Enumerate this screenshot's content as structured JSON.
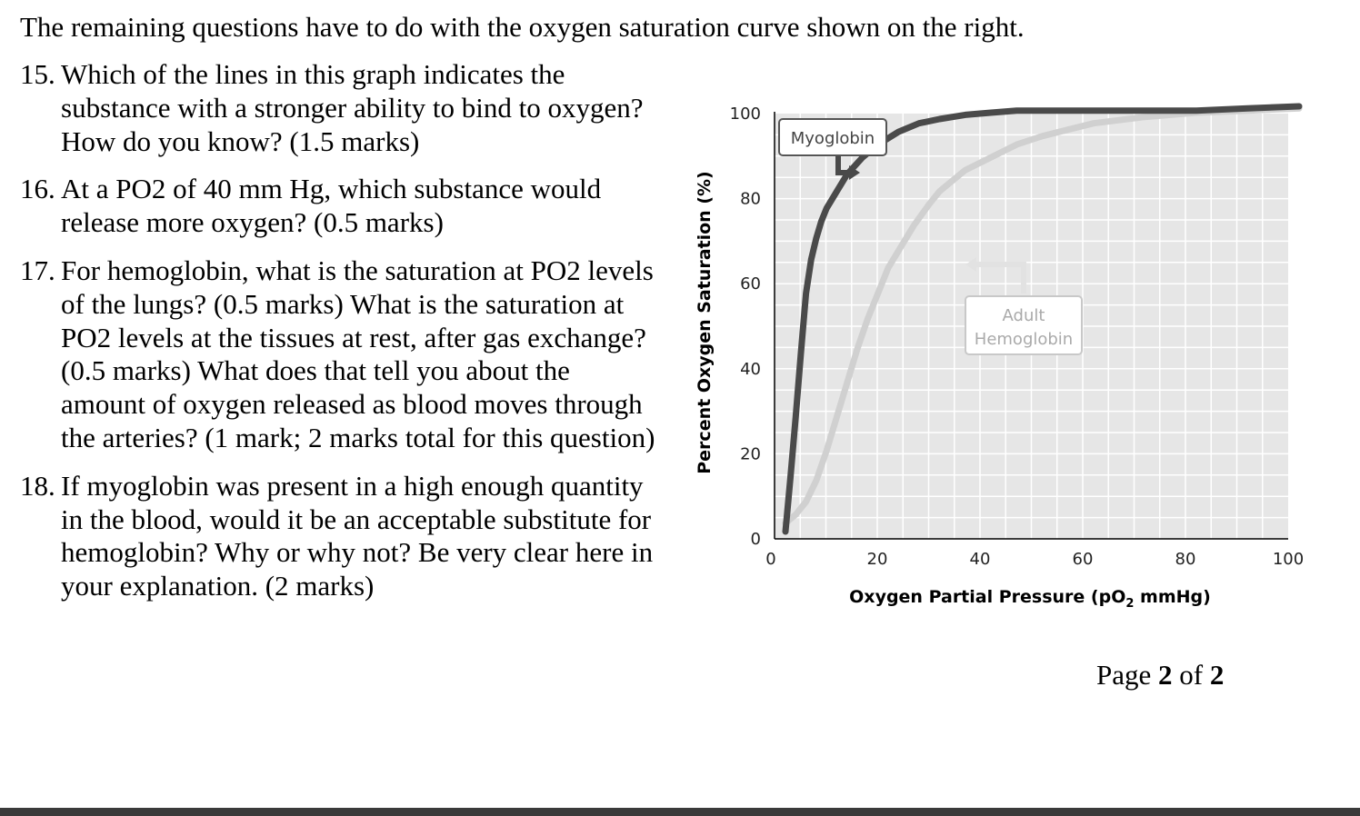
{
  "intro": "The remaining questions have to do with the oxygen saturation curve shown on the right.",
  "questions": [
    {
      "num": "15.",
      "text": "Which of the lines in this graph indicates the substance with a stronger ability to bind to oxygen? How do you know? (1.5 marks)"
    },
    {
      "num": "16.",
      "text": "At a PO2 of 40 mm Hg, which substance would release more oxygen? (0.5 marks)"
    },
    {
      "num": "17.",
      "text": "For hemoglobin, what is the saturation at PO2 levels of the lungs? (0.5 marks) What is the saturation at PO2 levels at the tissues at rest, after gas exchange? (0.5 marks) What does that tell you about the amount of oxygen released as blood moves through the arteries? (1 mark; 2 marks total for this question)"
    },
    {
      "num": "18.",
      "text": "If myoglobin was present in a high enough quantity in the blood, would it be an acceptable substitute for hemoglobin? Why or why not? Be very clear here in your explanation. (2 marks)"
    }
  ],
  "chart_data": {
    "type": "line",
    "title": "",
    "xlabel_main": "Oxygen Partial Pressure (pO",
    "xlabel_sub": "2",
    "xlabel_end": " mmHg)",
    "ylabel": "Percent Oxygen Saturation (%)",
    "xlim": [
      0,
      100
    ],
    "ylim": [
      0,
      100
    ],
    "x_ticks": [
      "0",
      "20",
      "40",
      "60",
      "80",
      "100"
    ],
    "y_ticks": [
      "0",
      "20",
      "40",
      "60",
      "80",
      "100"
    ],
    "grid": true,
    "series": [
      {
        "name": "Myoglobin",
        "color": "#4a4a4a",
        "x": [
          0,
          1,
          2,
          3,
          4,
          5,
          6,
          7,
          8,
          10,
          12,
          15,
          18,
          22,
          26,
          30,
          35,
          40,
          45,
          50,
          60,
          70,
          80,
          90,
          100
        ],
        "y": [
          0,
          13,
          27,
          42,
          56,
          64,
          69,
          73,
          76,
          80,
          84,
          88,
          91,
          94,
          96,
          97,
          98,
          98.5,
          99,
          99,
          99,
          99,
          99,
          99.5,
          100
        ]
      },
      {
        "name": "Adult Hemoglobin",
        "color": "#d0d0d0",
        "x": [
          0,
          2,
          4,
          6,
          8,
          10,
          12,
          14,
          16,
          18,
          20,
          22,
          25,
          28,
          30,
          35,
          40,
          45,
          50,
          55,
          60,
          70,
          80,
          90,
          100
        ],
        "y": [
          2,
          4,
          7,
          12,
          19,
          27,
          35,
          43,
          50,
          56,
          62,
          66,
          72,
          77,
          80,
          85,
          88,
          91,
          93,
          94.5,
          96,
          97.5,
          98.5,
          99,
          99.5
        ]
      }
    ],
    "labels": {
      "myoglobin": "Myoglobin",
      "hemoglobin_line1": "Adult",
      "hemoglobin_line2": "Hemoglobin"
    }
  },
  "footer": {
    "prefix": "Page ",
    "page": "2",
    "middle": " of ",
    "total": "2"
  }
}
